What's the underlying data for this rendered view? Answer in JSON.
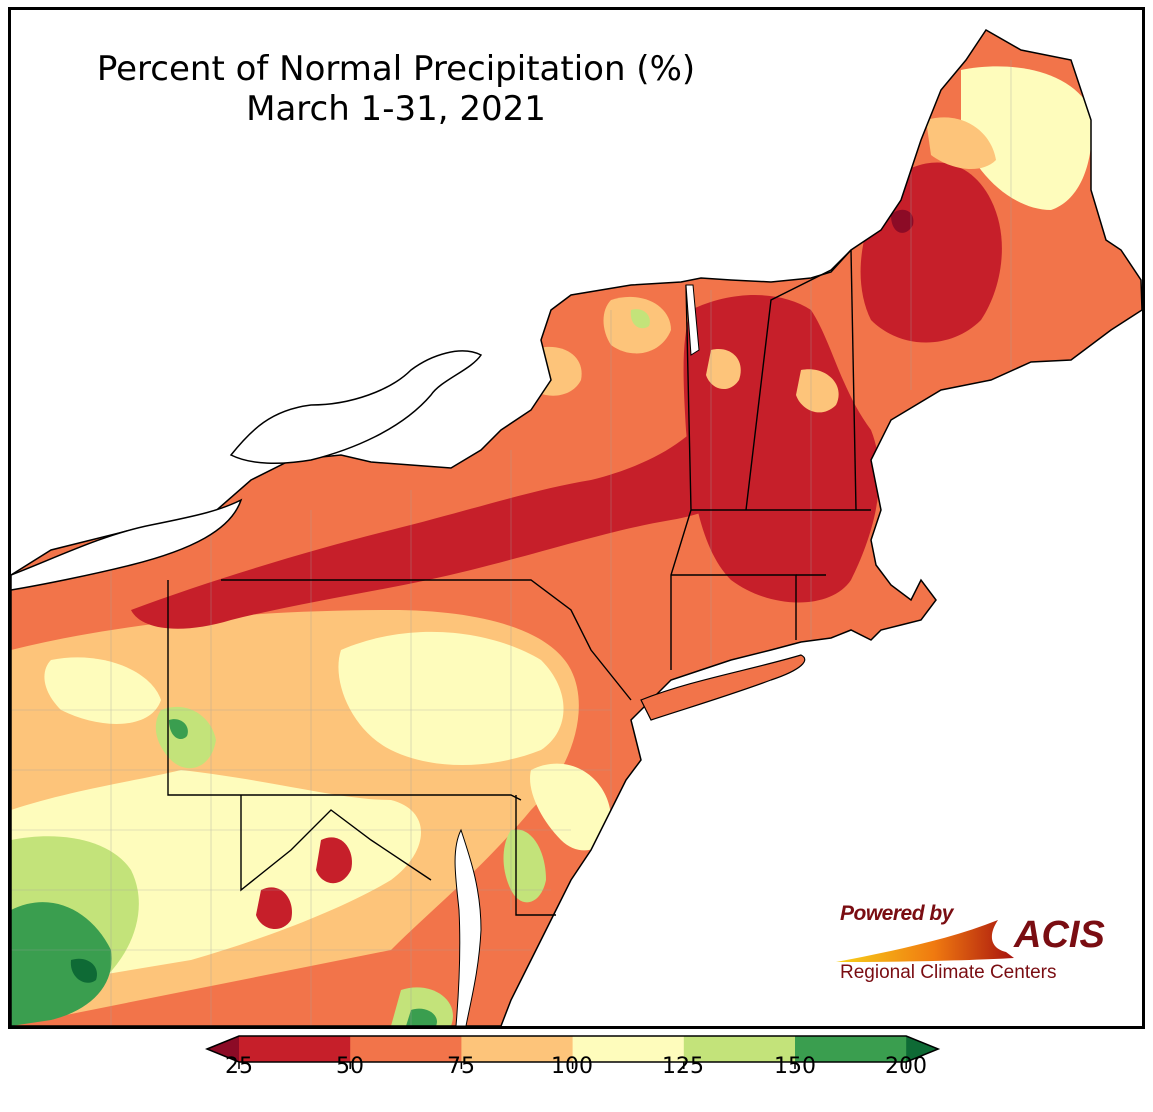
{
  "title_line1": "Percent of Normal Precipitation (%)",
  "title_line2": "March 1-31, 2021",
  "logo": {
    "powered_by": "Powered by",
    "brand": "ACIS",
    "subtitle": "Regional Climate Centers"
  },
  "legend": {
    "ticks": [
      "25",
      "50",
      "75",
      "100",
      "125",
      "150",
      "200"
    ],
    "colors": [
      "#c61f2a",
      "#f2744a",
      "#fdc47a",
      "#fefcbc",
      "#c3e37a",
      "#3a9e4f"
    ],
    "under_color": "#8c0b26",
    "over_color": "#0e6a35"
  },
  "colors": {
    "water": "#ffffff",
    "border": "#000000",
    "county_lines": "#a0a0a0",
    "logo": "#7a0d12"
  }
}
